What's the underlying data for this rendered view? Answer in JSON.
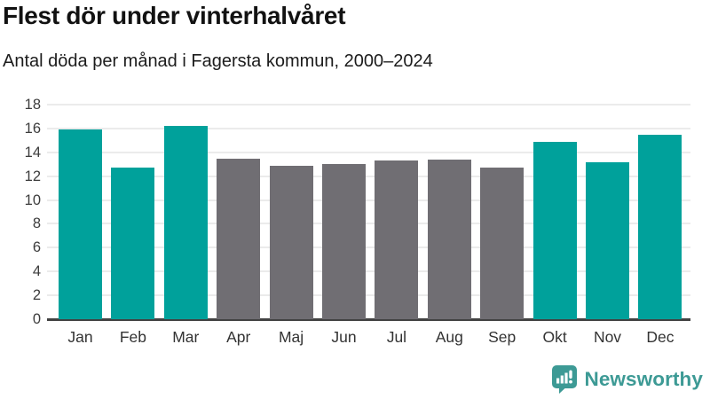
{
  "chart_data": {
    "type": "bar",
    "title": "Flest dör under vinterhalvåret",
    "subtitle": "Antal döda per månad i Fagersta kommun, 2000–2024",
    "categories": [
      "Jan",
      "Feb",
      "Mar",
      "Apr",
      "Maj",
      "Jun",
      "Jul",
      "Aug",
      "Sep",
      "Okt",
      "Nov",
      "Dec"
    ],
    "values": [
      15.9,
      12.7,
      16.2,
      13.5,
      12.9,
      13.0,
      13.3,
      13.4,
      12.7,
      14.9,
      13.2,
      15.5
    ],
    "bar_colors": [
      "#00a19b",
      "#00a19b",
      "#00a19b",
      "#706e73",
      "#706e73",
      "#706e73",
      "#706e73",
      "#706e73",
      "#706e73",
      "#00a19b",
      "#00a19b",
      "#00a19b"
    ],
    "highlight_color": "#00a19b",
    "base_color": "#706e73",
    "xlabel": "",
    "ylabel": "",
    "ylim": [
      0,
      18
    ],
    "yticks": [
      0,
      2,
      4,
      6,
      8,
      10,
      12,
      14,
      16,
      18
    ],
    "grid": true,
    "legend": false
  },
  "colors": {
    "accent_teal": "#00a19b",
    "neutral_gray": "#706e73",
    "logo_teal": "#3d9a95",
    "gridline": "#ebebeb",
    "axis_line": "#424242",
    "tick_text": "#3c3c3c"
  },
  "footer": {
    "brand": "Newsworthy",
    "logo_icon": "bar-chart-speech-bubble-icon"
  }
}
